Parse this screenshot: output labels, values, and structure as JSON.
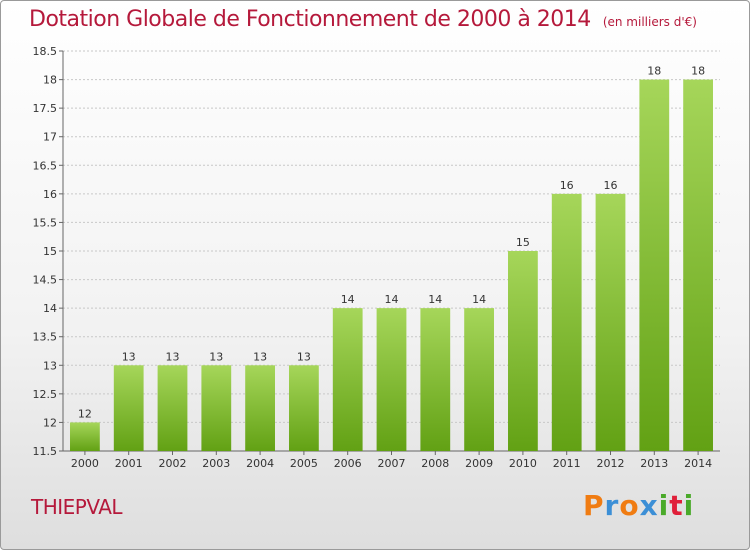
{
  "header": {
    "title": "Dotation Globale de Fonctionnement de 2000 à 2014",
    "subtitle": "(en milliers d'€)"
  },
  "footer": {
    "commune": "THIEPVAL",
    "logo_letters": [
      "P",
      "r",
      "o",
      "x",
      "i",
      "t",
      "i"
    ],
    "logo_colors": [
      "#f07c12",
      "#3c8fd6",
      "#f07c12",
      "#3c8fd6",
      "#4aaa2a",
      "#e0203a",
      "#4aaa2a"
    ]
  },
  "chart_data": {
    "type": "bar",
    "title": "Dotation Globale de Fonctionnement de 2000 à 2014",
    "subtitle": "(en milliers d'€)",
    "categories": [
      "2000",
      "2001",
      "2002",
      "2003",
      "2004",
      "2005",
      "2006",
      "2007",
      "2008",
      "2009",
      "2010",
      "2011",
      "2012",
      "2013",
      "2014"
    ],
    "values": [
      12,
      13,
      13,
      13,
      13,
      13,
      14,
      14,
      14,
      14,
      15,
      16,
      16,
      18,
      18
    ],
    "data_labels": [
      "12",
      "13",
      "13",
      "13",
      "13",
      "13",
      "14",
      "14",
      "14",
      "14",
      "15",
      "16",
      "16",
      "18",
      "18"
    ],
    "ylim": [
      11.5,
      18.5
    ],
    "yticks": [
      11.5,
      12,
      12.5,
      13,
      13.5,
      14,
      14.5,
      15,
      15.5,
      16,
      16.5,
      17,
      17.5,
      18,
      18.5
    ],
    "ytick_labels": [
      "11.5",
      "12",
      "12.5",
      "13",
      "13.5",
      "14",
      "14.5",
      "15",
      "15.5",
      "16",
      "16.5",
      "17",
      "17.5",
      "18",
      "18.5"
    ],
    "grid": true,
    "bar_color_top": "#a6d65a",
    "bar_color_bottom": "#62a114"
  }
}
